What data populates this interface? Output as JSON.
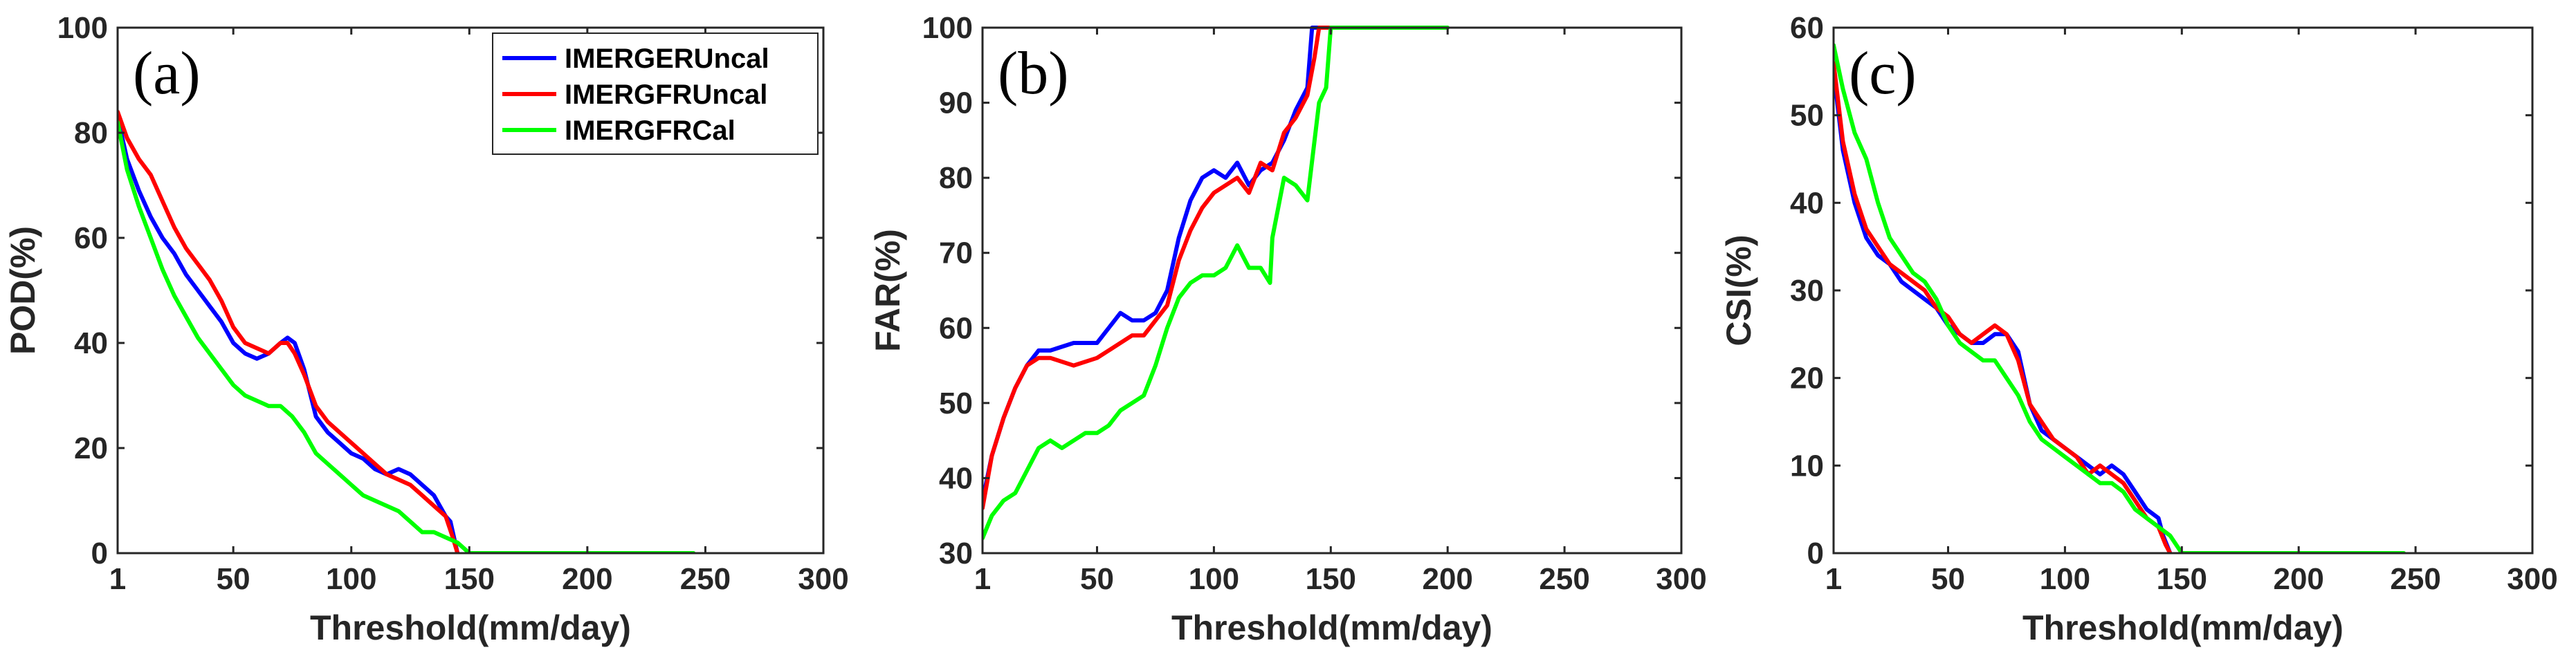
{
  "chart_data": [
    {
      "type": "line",
      "panel_tag": "(a)",
      "xlabel": "Threshold(mm/day)",
      "ylabel": "POD(%)",
      "xlim": [
        1,
        300
      ],
      "ylim": [
        0,
        100
      ],
      "xticks": [
        1,
        50,
        100,
        150,
        200,
        250,
        300
      ],
      "xtick_labels": [
        "1",
        "50",
        "100",
        "150",
        "200",
        "250",
        "300"
      ],
      "yticks": [
        0,
        20,
        40,
        60,
        80,
        100
      ],
      "ytick_labels": [
        "0",
        "20",
        "40",
        "60",
        "80",
        "100"
      ],
      "legend": {
        "placement": "top-right",
        "entries": [
          "IMERGERUncal",
          "IMERGFRUncal",
          "IMERGFRCal"
        ]
      },
      "series": [
        {
          "name": "IMERGERUncal",
          "color": "#0000ff",
          "x": [
            1,
            5,
            10,
            15,
            20,
            25,
            30,
            35,
            40,
            45,
            50,
            55,
            60,
            65,
            70,
            73,
            76,
            80,
            85,
            90,
            95,
            100,
            105,
            110,
            115,
            120,
            125,
            130,
            135,
            140,
            142,
            144,
            145
          ],
          "y": [
            83,
            75,
            69,
            64,
            60,
            57,
            53,
            50,
            47,
            44,
            40,
            38,
            37,
            38,
            40,
            41,
            40,
            35,
            26,
            23,
            21,
            19,
            18,
            16,
            15,
            16,
            15,
            13,
            11,
            7,
            6,
            2,
            0
          ]
        },
        {
          "name": "IMERGFRUncal",
          "color": "#ff0000",
          "x": [
            1,
            5,
            10,
            15,
            20,
            25,
            30,
            35,
            40,
            45,
            50,
            55,
            60,
            65,
            70,
            73,
            76,
            80,
            85,
            90,
            95,
            100,
            105,
            110,
            115,
            120,
            125,
            130,
            135,
            140,
            143,
            145
          ],
          "y": [
            84,
            79,
            75,
            72,
            67,
            62,
            58,
            55,
            52,
            48,
            43,
            40,
            39,
            38,
            40,
            40,
            38,
            34,
            28,
            25,
            23,
            21,
            19,
            17,
            15,
            14,
            13,
            11,
            9,
            7,
            3,
            0
          ]
        },
        {
          "name": "IMERGFRCal",
          "color": "#00ff00",
          "x": [
            1,
            5,
            10,
            15,
            20,
            25,
            30,
            35,
            40,
            45,
            50,
            55,
            60,
            65,
            70,
            75,
            80,
            85,
            90,
            95,
            100,
            105,
            110,
            115,
            120,
            125,
            130,
            135,
            140,
            145,
            150,
            160,
            180,
            200,
            220,
            245
          ],
          "y": [
            82,
            73,
            66,
            60,
            54,
            49,
            45,
            41,
            38,
            35,
            32,
            30,
            29,
            28,
            28,
            26,
            23,
            19,
            17,
            15,
            13,
            11,
            10,
            9,
            8,
            6,
            4,
            4,
            3,
            2,
            0,
            0,
            0,
            0,
            0,
            0
          ]
        }
      ]
    },
    {
      "type": "line",
      "panel_tag": "(b)",
      "xlabel": "Threshold(mm/day)",
      "ylabel": "FAR(%)",
      "xlim": [
        1,
        300
      ],
      "ylim": [
        30,
        100
      ],
      "xticks": [
        1,
        50,
        100,
        150,
        200,
        250,
        300
      ],
      "xtick_labels": [
        "1",
        "50",
        "100",
        "150",
        "200",
        "250",
        "300"
      ],
      "yticks": [
        30,
        40,
        50,
        60,
        70,
        80,
        90,
        100
      ],
      "ytick_labels": [
        "30",
        "40",
        "50",
        "60",
        "70",
        "80",
        "90",
        "100"
      ],
      "series": [
        {
          "name": "IMERGERUncal",
          "color": "#0000ff",
          "x": [
            1,
            5,
            10,
            15,
            20,
            25,
            30,
            40,
            50,
            55,
            60,
            65,
            70,
            75,
            80,
            85,
            90,
            95,
            100,
            105,
            110,
            115,
            120,
            125,
            130,
            135,
            140,
            142,
            145
          ],
          "y": [
            37,
            43,
            48,
            52,
            55,
            57,
            57,
            58,
            58,
            60,
            62,
            61,
            61,
            62,
            65,
            72,
            77,
            80,
            81,
            80,
            82,
            79,
            81,
            82,
            85,
            89,
            92,
            100,
            100
          ]
        },
        {
          "name": "IMERGFRUncal",
          "color": "#ff0000",
          "x": [
            1,
            5,
            10,
            15,
            20,
            25,
            30,
            40,
            50,
            55,
            60,
            65,
            70,
            75,
            80,
            85,
            90,
            95,
            100,
            105,
            110,
            115,
            120,
            125,
            130,
            135,
            140,
            143,
            145,
            150
          ],
          "y": [
            36,
            43,
            48,
            52,
            55,
            56,
            56,
            55,
            56,
            57,
            58,
            59,
            59,
            61,
            63,
            69,
            73,
            76,
            78,
            79,
            80,
            78,
            82,
            81,
            86,
            88,
            91,
            96,
            100,
            100
          ]
        },
        {
          "name": "IMERGFRCal",
          "color": "#00ff00",
          "x": [
            1,
            5,
            10,
            15,
            20,
            25,
            30,
            35,
            40,
            45,
            50,
            55,
            60,
            65,
            70,
            75,
            80,
            85,
            90,
            95,
            100,
            105,
            110,
            115,
            120,
            124,
            125,
            130,
            135,
            140,
            145,
            148,
            150,
            160,
            180,
            200
          ],
          "y": [
            32,
            35,
            37,
            38,
            41,
            44,
            45,
            44,
            45,
            46,
            46,
            47,
            49,
            50,
            51,
            55,
            60,
            64,
            66,
            67,
            67,
            68,
            71,
            68,
            68,
            66,
            72,
            80,
            79,
            77,
            90,
            92,
            100,
            100,
            100,
            100
          ]
        }
      ]
    },
    {
      "type": "line",
      "panel_tag": "(c)",
      "xlabel": "Threshold(mm/day)",
      "ylabel": "CSI(%)",
      "xlim": [
        1,
        300
      ],
      "ylim": [
        0,
        60
      ],
      "xticks": [
        1,
        50,
        100,
        150,
        200,
        250,
        300
      ],
      "xtick_labels": [
        "1",
        "50",
        "100",
        "150",
        "200",
        "250",
        "300"
      ],
      "yticks": [
        0,
        10,
        20,
        30,
        40,
        50,
        60
      ],
      "ytick_labels": [
        "0",
        "10",
        "20",
        "30",
        "40",
        "50",
        "60"
      ],
      "series": [
        {
          "name": "IMERGERUncal",
          "color": "#0000ff",
          "x": [
            1,
            5,
            10,
            15,
            20,
            25,
            30,
            35,
            40,
            45,
            50,
            55,
            60,
            65,
            70,
            75,
            80,
            85,
            90,
            95,
            100,
            105,
            110,
            115,
            120,
            125,
            130,
            135,
            140,
            142,
            145
          ],
          "y": [
            55,
            46,
            40,
            36,
            34,
            33,
            31,
            30,
            29,
            28,
            26,
            25,
            24,
            24,
            25,
            25,
            23,
            17,
            14,
            13,
            12,
            11,
            10,
            9,
            10,
            9,
            7,
            5,
            4,
            2,
            0
          ]
        },
        {
          "name": "IMERGFRUncal",
          "color": "#ff0000",
          "x": [
            1,
            5,
            10,
            15,
            20,
            25,
            30,
            35,
            40,
            45,
            50,
            55,
            60,
            65,
            70,
            75,
            80,
            85,
            90,
            95,
            100,
            105,
            110,
            115,
            120,
            125,
            130,
            135,
            140,
            143,
            145
          ],
          "y": [
            56,
            47,
            41,
            37,
            35,
            33,
            32,
            31,
            30,
            28,
            27,
            25,
            24,
            25,
            26,
            25,
            22,
            17,
            15,
            13,
            12,
            11,
            9,
            10,
            9,
            8,
            6,
            4,
            3,
            1,
            0
          ]
        },
        {
          "name": "IMERGFRCal",
          "color": "#00ff00",
          "x": [
            1,
            5,
            10,
            15,
            20,
            25,
            30,
            35,
            40,
            45,
            50,
            55,
            60,
            65,
            70,
            75,
            80,
            85,
            90,
            95,
            100,
            105,
            110,
            115,
            120,
            125,
            130,
            135,
            140,
            145,
            150,
            160,
            180,
            200,
            220,
            245
          ],
          "y": [
            58,
            53,
            48,
            45,
            40,
            36,
            34,
            32,
            31,
            29,
            26,
            24,
            23,
            22,
            22,
            20,
            18,
            15,
            13,
            12,
            11,
            10,
            9,
            8,
            8,
            7,
            5,
            4,
            3,
            2,
            0,
            0,
            0,
            0,
            0,
            0
          ]
        }
      ]
    }
  ]
}
